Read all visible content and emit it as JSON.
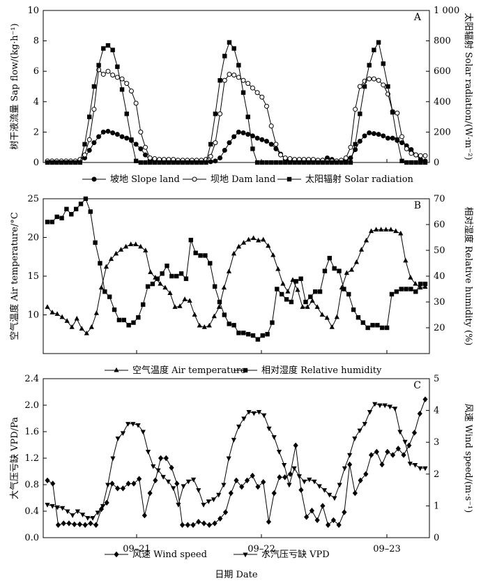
{
  "figure": {
    "xlabel": "日期  Date",
    "xticklabels": [
      "09–21",
      "09–22",
      "09–23"
    ]
  },
  "chart_data": [
    {
      "panel": "A",
      "type": "line",
      "ylabel": "树干液流量 Sap flow/(kg·h⁻¹)",
      "ylabel2": "太阳辐射 Solar radiation/(W·m⁻²)",
      "ylim": [
        0,
        10
      ],
      "yticks": [
        "0",
        "2",
        "4",
        "6",
        "8",
        "10"
      ],
      "ylim2": [
        0,
        1000
      ],
      "yticks2": [
        "0",
        "200",
        "400",
        "600",
        "800",
        "1 000"
      ],
      "legend": "bottom",
      "series": [
        {
          "name": "坡地 Slope land",
          "axis": "left",
          "marker": "circle-filled",
          "values": [
            0.05,
            0.05,
            0.05,
            0.05,
            0.05,
            0.05,
            0.05,
            0.1,
            0.3,
            0.8,
            1.3,
            1.7,
            2.0,
            2.05,
            1.95,
            1.85,
            1.7,
            1.6,
            1.45,
            1.2,
            0.9,
            0.5,
            0.15,
            0.1,
            0.1,
            0.1,
            0.1,
            0.05,
            0.05,
            0.05,
            0.05,
            0.05,
            0.05,
            0.05,
            0.05,
            0.05,
            0.1,
            0.3,
            0.8,
            1.3,
            1.7,
            2.0,
            1.95,
            1.85,
            1.75,
            1.6,
            1.5,
            1.4,
            1.2,
            0.9,
            0.55,
            0.2,
            0.1,
            0.1,
            0.1,
            0.1,
            0.1,
            0.1,
            0.1,
            0.15,
            0.3,
            0.2,
            0.1,
            0.1,
            0.1,
            0.3,
            0.85,
            1.4,
            1.75,
            1.95,
            1.9,
            1.85,
            1.75,
            1.6,
            1.6,
            1.45,
            1.3,
            1.1,
            0.85,
            0.5,
            0.2,
            0.1
          ]
        },
        {
          "name": "坝地 Dam land",
          "axis": "left",
          "marker": "circle-open",
          "values": [
            0.1,
            0.1,
            0.1,
            0.1,
            0.1,
            0.1,
            0.1,
            0.2,
            0.5,
            1.5,
            3.5,
            6.1,
            5.8,
            6.0,
            5.75,
            5.6,
            5.5,
            5.2,
            4.7,
            3.9,
            2.0,
            1.0,
            0.3,
            0.25,
            0.2,
            0.2,
            0.2,
            0.2,
            0.15,
            0.15,
            0.15,
            0.15,
            0.15,
            0.15,
            0.2,
            0.4,
            1.3,
            3.2,
            5.4,
            5.8,
            5.75,
            5.6,
            5.4,
            5.2,
            4.9,
            4.6,
            4.3,
            3.7,
            2.4,
            1.2,
            0.5,
            0.3,
            0.25,
            0.2,
            0.2,
            0.2,
            0.2,
            0.2,
            0.15,
            0.15,
            0.1,
            0.1,
            0.1,
            0.15,
            0.3,
            1.0,
            3.5,
            5.0,
            5.35,
            5.5,
            5.5,
            5.4,
            5.1,
            4.5,
            3.35,
            3.25,
            1.7,
            0.9,
            0.6,
            0.5,
            0.45,
            0.45
          ]
        },
        {
          "name": "太阳辐射 Solar radiation",
          "axis": "right",
          "marker": "square-filled",
          "values": [
            0,
            0,
            0,
            0,
            0,
            0,
            0,
            0,
            120,
            300,
            500,
            640,
            750,
            770,
            740,
            630,
            480,
            320,
            150,
            10,
            0,
            0,
            0,
            0,
            0,
            0,
            0,
            0,
            0,
            0,
            0,
            0,
            0,
            0,
            0,
            120,
            320,
            540,
            700,
            790,
            750,
            640,
            460,
            300,
            90,
            0,
            0,
            0,
            0,
            0,
            0,
            0,
            0,
            0,
            0,
            0,
            0,
            0,
            0,
            0,
            0,
            0,
            0,
            0,
            0,
            0,
            120,
            320,
            500,
            640,
            740,
            790,
            650,
            500,
            330,
            150,
            10,
            0,
            0,
            0,
            0,
            0
          ]
        }
      ]
    },
    {
      "panel": "B",
      "type": "line",
      "ylabel": "空气温度 Air temperature/°C",
      "ylabel2": "相对湿度 Relative humidity (%)",
      "ylim": [
        5,
        25
      ],
      "yticks": [
        "10",
        "15",
        "20",
        "25"
      ],
      "ylim2": [
        10,
        70
      ],
      "yticks2": [
        "20",
        "30",
        "40",
        "50",
        "60",
        "70"
      ],
      "legend": "bottom",
      "series": [
        {
          "name": "空气温度 Air temperature",
          "axis": "left",
          "marker": "triangle-up",
          "values": [
            11.0,
            10.3,
            10.1,
            9.7,
            9.2,
            8.4,
            9.5,
            8.2,
            7.6,
            8.4,
            10.2,
            13.5,
            16.2,
            17.2,
            17.9,
            18.4,
            18.8,
            19.1,
            19.1,
            18.8,
            18.3,
            15.5,
            14.8,
            14.0,
            13.5,
            12.8,
            11.0,
            11.1,
            12.0,
            11.8,
            10.0,
            8.6,
            8.4,
            8.6,
            9.8,
            11.0,
            13.5,
            15.6,
            17.9,
            18.8,
            19.3,
            19.7,
            19.9,
            19.6,
            19.7,
            18.9,
            17.7,
            15.9,
            14.0,
            13.0,
            14.5,
            13.2,
            11.0,
            11.0,
            11.8,
            11.0,
            10.0,
            9.6,
            8.4,
            9.7,
            13.5,
            15.4,
            15.8,
            16.8,
            18.4,
            19.6,
            20.8,
            21.0,
            21.0,
            21.0,
            21.0,
            20.8,
            20.5,
            17.0,
            14.8,
            14.0,
            13.5,
            13.6
          ]
        },
        {
          "name": "相对湿度 Relative humidity",
          "axis": "right",
          "marker": "square-filled",
          "values": [
            61,
            61,
            63,
            62.5,
            66,
            64,
            66,
            68,
            70,
            65,
            53,
            45,
            34,
            32,
            27,
            23,
            23,
            21,
            22,
            24,
            29,
            36,
            37,
            39,
            41,
            44,
            40,
            40,
            41,
            39,
            54,
            49,
            48,
            48,
            45,
            36,
            30,
            25,
            21.5,
            21,
            18,
            18,
            17.5,
            17,
            15.5,
            17,
            17.5,
            22,
            35,
            33,
            31,
            30,
            38,
            39,
            30,
            32,
            34,
            34,
            42,
            47,
            43,
            42,
            35,
            33,
            27,
            24,
            22,
            20,
            21,
            21,
            20,
            20,
            33,
            34,
            35,
            35,
            35,
            34,
            37,
            37
          ]
        }
      ]
    },
    {
      "panel": "C",
      "type": "line",
      "ylabel": "大气压亏缺 VPD/Pa",
      "ylabel2": "风速 Wind speed/(m·s⁻¹)",
      "ylim": [
        0,
        2.4
      ],
      "yticks": [
        "0.0",
        "0.4",
        "0.8",
        "1.2",
        "1.6",
        "2.0",
        "2.4"
      ],
      "ylim2": [
        0,
        5
      ],
      "yticks2": [
        "0",
        "1",
        "2",
        "3",
        "4",
        "5"
      ],
      "legend": "bottom",
      "series": [
        {
          "name": "风速 Wind speed",
          "axis": "right",
          "marker": "diamond",
          "values": [
            1.8,
            1.7,
            0.4,
            0.45,
            0.45,
            0.42,
            0.42,
            0.4,
            0.45,
            0.4,
            0.9,
            1.1,
            1.7,
            1.55,
            1.55,
            1.7,
            1.7,
            1.85,
            0.7,
            1.4,
            1.8,
            2.5,
            2.5,
            2.2,
            1.7,
            0.4,
            0.4,
            0.4,
            0.5,
            0.45,
            0.4,
            0.45,
            0.6,
            0.8,
            1.4,
            1.8,
            1.6,
            1.8,
            1.95,
            1.6,
            1.75,
            0.5,
            1.4,
            1.9,
            1.9,
            2.0,
            2.9,
            1.5,
            0.65,
            0.85,
            0.55,
            1.0,
            0.4,
            0.55,
            0.4,
            0.8,
            2.3,
            1.4,
            1.8,
            2.0,
            2.6,
            2.7,
            2.3,
            2.7,
            2.6,
            2.8,
            2.6,
            2.9,
            3.3,
            3.9,
            4.35
          ]
        },
        {
          "name": "水汽压亏缺 VPD",
          "axis": "left",
          "marker": "triangle-down",
          "values": [
            0.5,
            0.48,
            0.46,
            0.45,
            0.4,
            0.34,
            0.4,
            0.35,
            0.3,
            0.3,
            0.38,
            0.48,
            0.8,
            1.2,
            1.5,
            1.58,
            1.72,
            1.72,
            1.7,
            1.6,
            1.3,
            1.08,
            1.02,
            0.92,
            0.85,
            0.75,
            0.5,
            0.78,
            0.85,
            0.88,
            0.72,
            0.5,
            0.55,
            0.58,
            0.65,
            0.8,
            1.2,
            1.48,
            1.68,
            1.8,
            1.9,
            1.88,
            1.9,
            1.85,
            1.65,
            1.52,
            1.3,
            1.1,
            0.8,
            1.05,
            0.93,
            0.85,
            0.88,
            0.85,
            0.78,
            0.72,
            0.65,
            0.6,
            0.8,
            1.05,
            1.25,
            1.5,
            1.62,
            1.72,
            1.9,
            2.02,
            2.0,
            2.0,
            1.98,
            1.95,
            1.6,
            1.45,
            1.12,
            1.1,
            1.05,
            1.05
          ]
        }
      ]
    }
  ]
}
